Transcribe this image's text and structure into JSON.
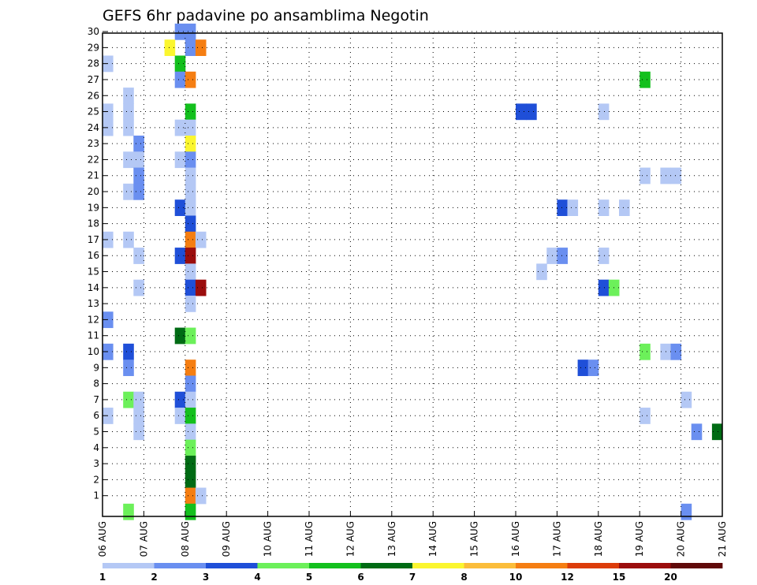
{
  "chart_data": {
    "type": "heatmap",
    "title": "GEFS 6hr padavine po ansamblima Negotin",
    "xlabel": "",
    "ylabel": "",
    "x_ticks": [
      "06 AUG",
      "07 AUG",
      "08 AUG",
      "09 AUG",
      "10 AUG",
      "11 AUG",
      "12 AUG",
      "13 AUG",
      "14 AUG",
      "15 AUG",
      "16 AUG",
      "17 AUG",
      "18 AUG",
      "19 AUG",
      "20 AUG",
      "21 AUG"
    ],
    "y_ticks": [
      "1",
      "2",
      "3",
      "4",
      "5",
      "6",
      "7",
      "8",
      "9",
      "10",
      "11",
      "12",
      "13",
      "14",
      "15",
      "16",
      "17",
      "18",
      "19",
      "20",
      "21",
      "22",
      "23",
      "24",
      "25",
      "26",
      "27",
      "28",
      "29",
      "30"
    ],
    "xlim_days": [
      0,
      15
    ],
    "ylim_members": [
      0,
      30
    ],
    "grid": true,
    "colorbar": {
      "ticks": [
        "1",
        "2",
        "3",
        "4",
        "5",
        "6",
        "7",
        "8",
        "10",
        "12",
        "15",
        "20"
      ],
      "colors": [
        "#b4c8f5",
        "#6a8ff0",
        "#1f4fd8",
        "#6cf05a",
        "#13c01d",
        "#006b14",
        "#fbf62f",
        "#fbbd3a",
        "#f57e12",
        "#dc3c0a",
        "#9b0d0d",
        "#600a0a"
      ]
    },
    "cells": [
      {
        "m": 30,
        "t": 1.75,
        "v": 2
      },
      {
        "m": 30,
        "t": 2.0,
        "v": 2
      },
      {
        "m": 29,
        "t": 1.5,
        "v": 7
      },
      {
        "m": 29,
        "t": 2.0,
        "v": 2
      },
      {
        "m": 29,
        "t": 2.25,
        "v": 10
      },
      {
        "m": 28,
        "t": 0.0,
        "v": 1
      },
      {
        "m": 28,
        "t": 1.75,
        "v": 5
      },
      {
        "m": 27,
        "t": 1.75,
        "v": 2
      },
      {
        "m": 27,
        "t": 2.0,
        "v": 10
      },
      {
        "m": 27,
        "t": 13.0,
        "v": 5
      },
      {
        "m": 26,
        "t": 0.5,
        "v": 1
      },
      {
        "m": 25,
        "t": 0.0,
        "v": 1
      },
      {
        "m": 25,
        "t": 0.5,
        "v": 1
      },
      {
        "m": 25,
        "t": 2.0,
        "v": 5
      },
      {
        "m": 25,
        "t": 10.0,
        "v": 3
      },
      {
        "m": 25,
        "t": 10.25,
        "v": 3
      },
      {
        "m": 25,
        "t": 12.0,
        "v": 1
      },
      {
        "m": 24,
        "t": 0.0,
        "v": 1
      },
      {
        "m": 24,
        "t": 0.5,
        "v": 1
      },
      {
        "m": 24,
        "t": 1.75,
        "v": 1
      },
      {
        "m": 24,
        "t": 2.0,
        "v": 1
      },
      {
        "m": 23,
        "t": 0.75,
        "v": 2
      },
      {
        "m": 23,
        "t": 2.0,
        "v": 7
      },
      {
        "m": 22,
        "t": 0.5,
        "v": 1
      },
      {
        "m": 22,
        "t": 0.75,
        "v": 1
      },
      {
        "m": 22,
        "t": 1.75,
        "v": 1
      },
      {
        "m": 22,
        "t": 2.0,
        "v": 2
      },
      {
        "m": 21,
        "t": 0.75,
        "v": 2
      },
      {
        "m": 21,
        "t": 2.0,
        "v": 1
      },
      {
        "m": 21,
        "t": 13.0,
        "v": 1
      },
      {
        "m": 21,
        "t": 13.5,
        "v": 1
      },
      {
        "m": 21,
        "t": 13.75,
        "v": 1
      },
      {
        "m": 20,
        "t": 0.5,
        "v": 1
      },
      {
        "m": 20,
        "t": 0.75,
        "v": 2
      },
      {
        "m": 20,
        "t": 2.0,
        "v": 1
      },
      {
        "m": 19,
        "t": 1.75,
        "v": 3
      },
      {
        "m": 19,
        "t": 2.0,
        "v": 1
      },
      {
        "m": 19,
        "t": 11.0,
        "v": 3
      },
      {
        "m": 19,
        "t": 11.25,
        "v": 1
      },
      {
        "m": 19,
        "t": 12.0,
        "v": 1
      },
      {
        "m": 19,
        "t": 12.5,
        "v": 1
      },
      {
        "m": 18,
        "t": 2.0,
        "v": 3
      },
      {
        "m": 17,
        "t": 0.0,
        "v": 1
      },
      {
        "m": 17,
        "t": 0.5,
        "v": 1
      },
      {
        "m": 17,
        "t": 2.0,
        "v": 10
      },
      {
        "m": 17,
        "t": 2.25,
        "v": 1
      },
      {
        "m": 16,
        "t": 0.75,
        "v": 1
      },
      {
        "m": 16,
        "t": 1.75,
        "v": 3
      },
      {
        "m": 16,
        "t": 2.0,
        "v": 15
      },
      {
        "m": 16,
        "t": 10.75,
        "v": 1
      },
      {
        "m": 16,
        "t": 11.0,
        "v": 2
      },
      {
        "m": 16,
        "t": 12.0,
        "v": 1
      },
      {
        "m": 15,
        "t": 2.0,
        "v": 1
      },
      {
        "m": 15,
        "t": 10.5,
        "v": 1
      },
      {
        "m": 14,
        "t": 0.75,
        "v": 1
      },
      {
        "m": 14,
        "t": 2.0,
        "v": 3
      },
      {
        "m": 14,
        "t": 2.25,
        "v": 15
      },
      {
        "m": 14,
        "t": 12.0,
        "v": 3
      },
      {
        "m": 14,
        "t": 12.25,
        "v": 4
      },
      {
        "m": 13,
        "t": 2.0,
        "v": 1
      },
      {
        "m": 12,
        "t": 0.0,
        "v": 2
      },
      {
        "m": 11,
        "t": 1.75,
        "v": 6
      },
      {
        "m": 11,
        "t": 2.0,
        "v": 4
      },
      {
        "m": 10,
        "t": 0.0,
        "v": 2
      },
      {
        "m": 10,
        "t": 0.5,
        "v": 3
      },
      {
        "m": 10,
        "t": 13.0,
        "v": 4
      },
      {
        "m": 10,
        "t": 13.5,
        "v": 1
      },
      {
        "m": 10,
        "t": 13.75,
        "v": 2
      },
      {
        "m": 9,
        "t": 0.5,
        "v": 2
      },
      {
        "m": 9,
        "t": 2.0,
        "v": 10
      },
      {
        "m": 9,
        "t": 11.5,
        "v": 3
      },
      {
        "m": 9,
        "t": 11.75,
        "v": 2
      },
      {
        "m": 8,
        "t": 2.0,
        "v": 2
      },
      {
        "m": 7,
        "t": 0.5,
        "v": 4
      },
      {
        "m": 7,
        "t": 0.75,
        "v": 1
      },
      {
        "m": 7,
        "t": 1.75,
        "v": 3
      },
      {
        "m": 7,
        "t": 2.0,
        "v": 1
      },
      {
        "m": 7,
        "t": 14.0,
        "v": 1
      },
      {
        "m": 6,
        "t": 0.0,
        "v": 1
      },
      {
        "m": 6,
        "t": 0.75,
        "v": 1
      },
      {
        "m": 6,
        "t": 1.75,
        "v": 1
      },
      {
        "m": 6,
        "t": 2.0,
        "v": 5
      },
      {
        "m": 6,
        "t": 13.0,
        "v": 1
      },
      {
        "m": 5,
        "t": 0.75,
        "v": 1
      },
      {
        "m": 5,
        "t": 2.0,
        "v": 1
      },
      {
        "m": 5,
        "t": 14.25,
        "v": 2
      },
      {
        "m": 5,
        "t": 14.75,
        "v": 6
      },
      {
        "m": 4,
        "t": 2.0,
        "v": 4
      },
      {
        "m": 3,
        "t": 2.0,
        "v": 6
      },
      {
        "m": 2,
        "t": 2.0,
        "v": 6
      },
      {
        "m": 1,
        "t": 2.0,
        "v": 10
      },
      {
        "m": 1,
        "t": 2.25,
        "v": 1
      },
      {
        "m": 0,
        "t": 0.5,
        "v": 4
      },
      {
        "m": 0,
        "t": 2.0,
        "v": 5
      },
      {
        "m": 0,
        "t": 14.0,
        "v": 2
      }
    ]
  }
}
